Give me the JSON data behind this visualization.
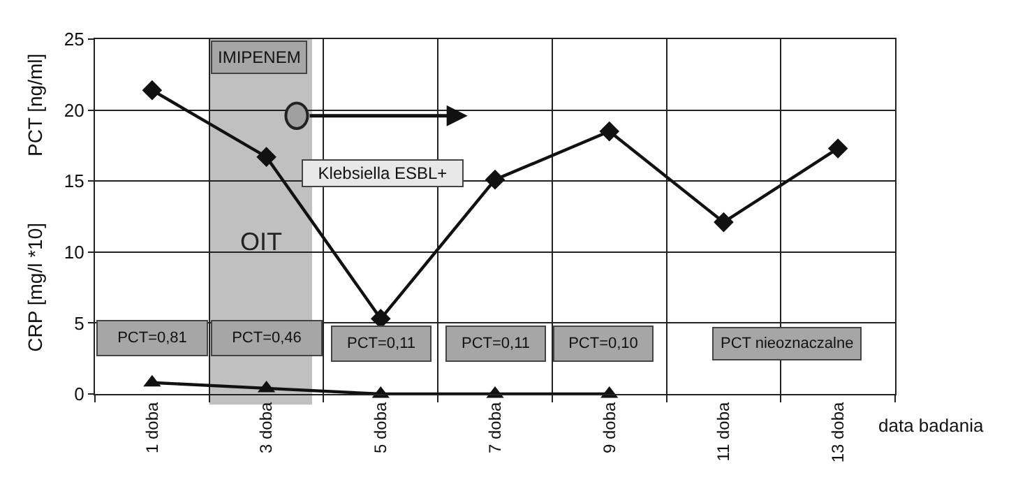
{
  "chart_data": {
    "type": "line",
    "categories": [
      "1 doba",
      "3 doba",
      "5 doba",
      "7 doba",
      "9 doba",
      "11 doba",
      "13 doba"
    ],
    "series": [
      {
        "color": "#111111",
        "marker": "diamond",
        "values": [
          21.4,
          16.7,
          5.3,
          15.1,
          18.5,
          12.1,
          17.3
        ]
      },
      {
        "color": "#111111",
        "marker": "triangle",
        "values": [
          0.8,
          0.4,
          0,
          0,
          0,
          null,
          null
        ]
      }
    ],
    "xlabel": "data badania",
    "ylabel": "CRP [mg/l *10]",
    "ylim": [
      0,
      25
    ],
    "yticks": [
      0,
      5,
      10,
      15,
      20,
      25
    ],
    "grid": true,
    "line_style": "solid",
    "bands": [
      {
        "axis": "x",
        "from": "3 doba",
        "to": "3 doba",
        "label": "OIT",
        "color": "#c0c0c0"
      }
    ],
    "annotations": [
      "PCT [ng/ml]",
      "IMIPENEM",
      "Klebsiella ESBL+",
      "PCT=0,81",
      "PCT=0,46",
      "PCT=0,11",
      "PCT=0,11",
      "PCT=0,10",
      "PCT nieoznaczalne"
    ]
  }
}
